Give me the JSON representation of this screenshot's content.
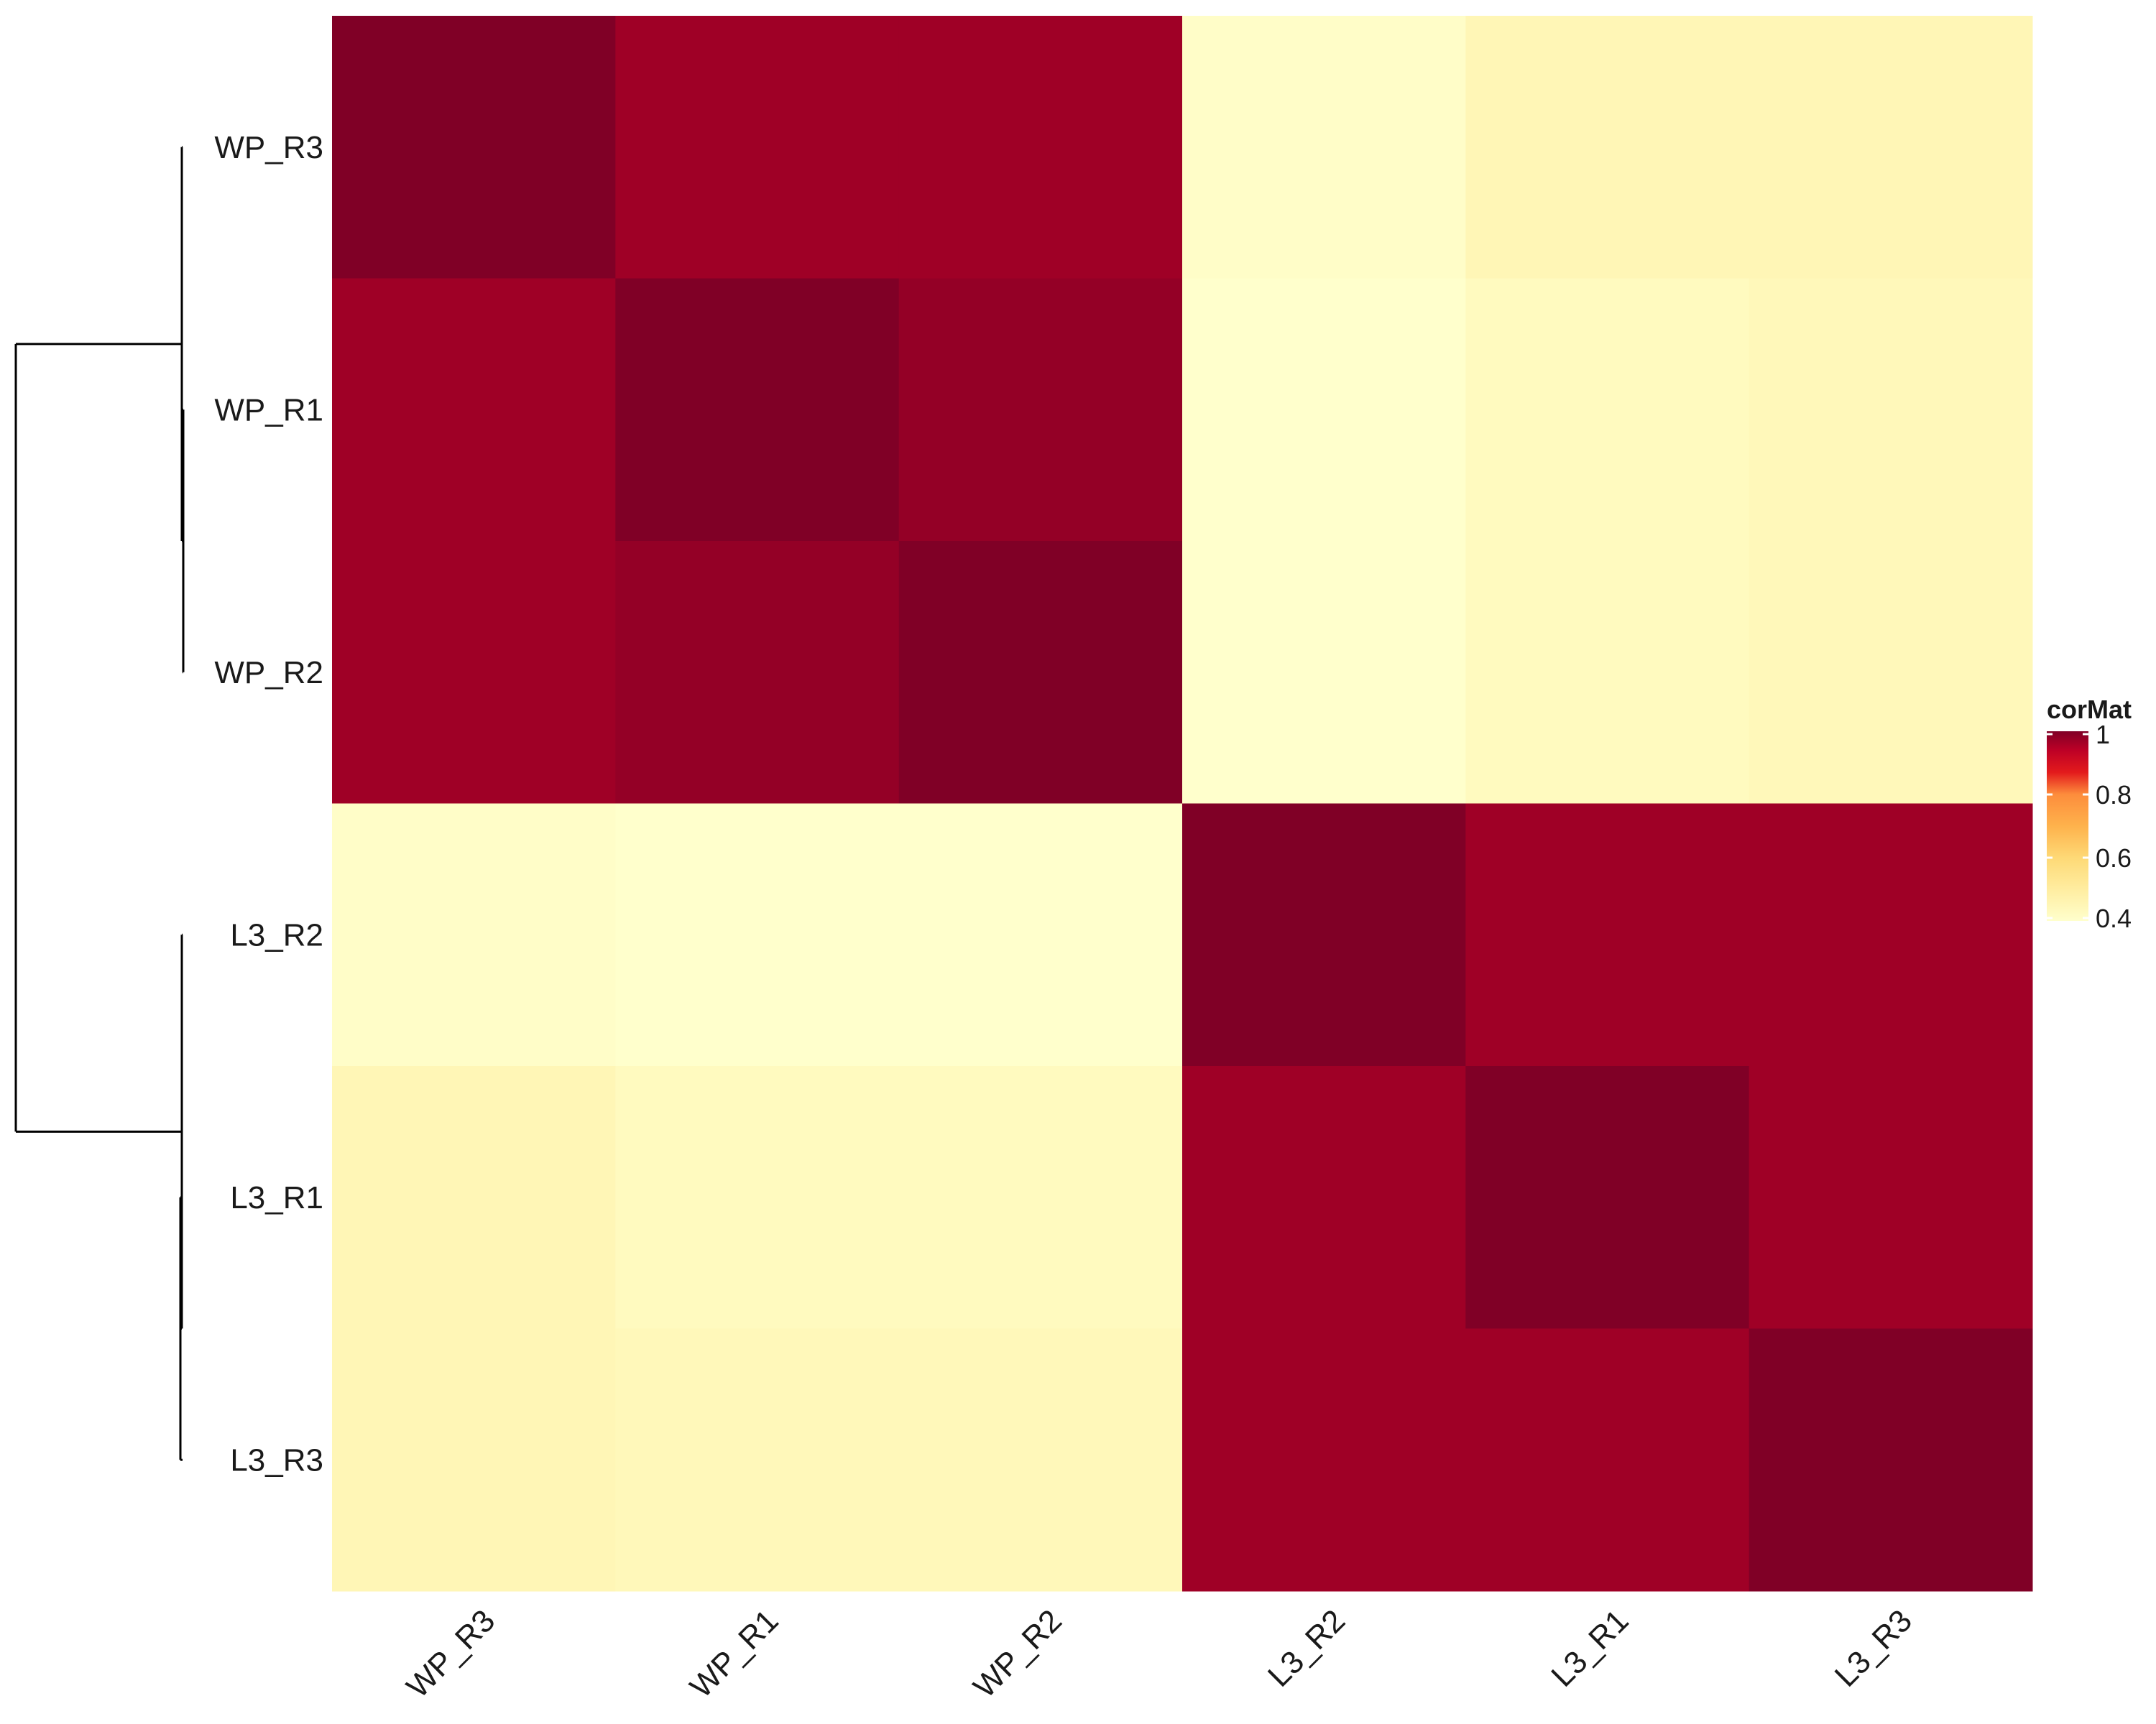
{
  "chart_data": {
    "type": "heatmap",
    "rows": [
      "WP_R3",
      "WP_R1",
      "WP_R2",
      "L3_R2",
      "L3_R1",
      "L3_R3"
    ],
    "columns": [
      "WP_R3",
      "WP_R1",
      "WP_R2",
      "L3_R2",
      "L3_R1",
      "L3_R3"
    ],
    "values": [
      [
        1.0,
        0.97,
        0.97,
        0.41,
        0.45,
        0.45
      ],
      [
        0.97,
        1.0,
        0.98,
        0.4,
        0.43,
        0.44
      ],
      [
        0.97,
        0.98,
        1.0,
        0.4,
        0.43,
        0.44
      ],
      [
        0.41,
        0.4,
        0.4,
        1.0,
        0.97,
        0.97
      ],
      [
        0.45,
        0.43,
        0.43,
        0.97,
        1.0,
        0.97
      ],
      [
        0.45,
        0.44,
        0.44,
        0.97,
        0.97,
        1.0
      ]
    ],
    "color_scale": {
      "title": "corMat",
      "range": [
        0.4,
        1.0
      ],
      "ticks": [
        "1",
        "0.8",
        "0.6",
        "0.4"
      ],
      "tick_values": [
        1.0,
        0.8,
        0.6,
        0.4
      ],
      "stops": [
        {
          "value": 0.4,
          "color": "#ffffcc"
        },
        {
          "value": 0.5,
          "color": "#ffeda0"
        },
        {
          "value": 0.6,
          "color": "#fed976"
        },
        {
          "value": 0.7,
          "color": "#feb24c"
        },
        {
          "value": 0.8,
          "color": "#fd8d3c"
        },
        {
          "value": 0.87,
          "color": "#e31a1c"
        },
        {
          "value": 0.94,
          "color": "#bd0026"
        },
        {
          "value": 1.0,
          "color": "#800026"
        }
      ]
    },
    "row_dendrogram": true,
    "legend_position": "right"
  }
}
